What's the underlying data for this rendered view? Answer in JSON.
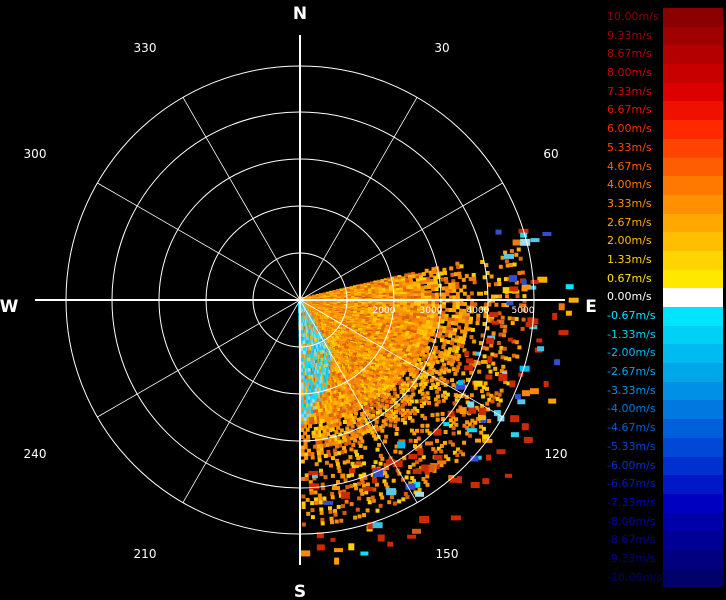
{
  "compass": {
    "north": "N",
    "south": "S",
    "east": "E",
    "west": "W"
  },
  "bearings": [
    "30",
    "60",
    "120",
    "150",
    "210",
    "240",
    "300",
    "330"
  ],
  "range_labels": [
    "2000",
    "3000",
    "4000",
    "5000"
  ],
  "legend": {
    "items": [
      {
        "label": "10.00m/s",
        "color": "#8b0000"
      },
      {
        "label": "9.33m/s",
        "color": "#a00000"
      },
      {
        "label": "8.67m/s",
        "color": "#b40000"
      },
      {
        "label": "8.00m/s",
        "color": "#c80000"
      },
      {
        "label": "7.33m/s",
        "color": "#dc0000"
      },
      {
        "label": "6.67m/s",
        "color": "#f01000"
      },
      {
        "label": "6.00m/s",
        "color": "#ff2a00"
      },
      {
        "label": "5.33m/s",
        "color": "#ff4400"
      },
      {
        "label": "4.67m/s",
        "color": "#ff5e00"
      },
      {
        "label": "4.00m/s",
        "color": "#ff7800"
      },
      {
        "label": "3.33m/s",
        "color": "#ff9000"
      },
      {
        "label": "2.67m/s",
        "color": "#ffa800"
      },
      {
        "label": "2.00m/s",
        "color": "#ffbf00"
      },
      {
        "label": "1.33m/s",
        "color": "#ffd400"
      },
      {
        "label": "0.67m/s",
        "color": "#ffe800"
      },
      {
        "label": "0.00m/s",
        "color": "#ffffff"
      },
      {
        "label": "-0.67m/s",
        "color": "#00e5ff"
      },
      {
        "label": "-1.33m/s",
        "color": "#00d0f5"
      },
      {
        "label": "-2.00m/s",
        "color": "#00bbf0"
      },
      {
        "label": "-2.67m/s",
        "color": "#00a6ea"
      },
      {
        "label": "-3.33m/s",
        "color": "#0090e5"
      },
      {
        "label": "-4.00m/s",
        "color": "#0078e0"
      },
      {
        "label": "-4.67m/s",
        "color": "#0060da"
      },
      {
        "label": "-5.33m/s",
        "color": "#0048d5"
      },
      {
        "label": "-6.00m/s",
        "color": "#0030d0"
      },
      {
        "label": "-6.67m/s",
        "color": "#0018c8"
      },
      {
        "label": "-7.33m/s",
        "color": "#0000c0"
      },
      {
        "label": "-8.00m/s",
        "color": "#0000aa"
      },
      {
        "label": "-8.67m/s",
        "color": "#000095"
      },
      {
        "label": "-9.33m/s",
        "color": "#000080"
      },
      {
        "label": "-10.00m/s",
        "color": "#00006b"
      }
    ]
  }
}
